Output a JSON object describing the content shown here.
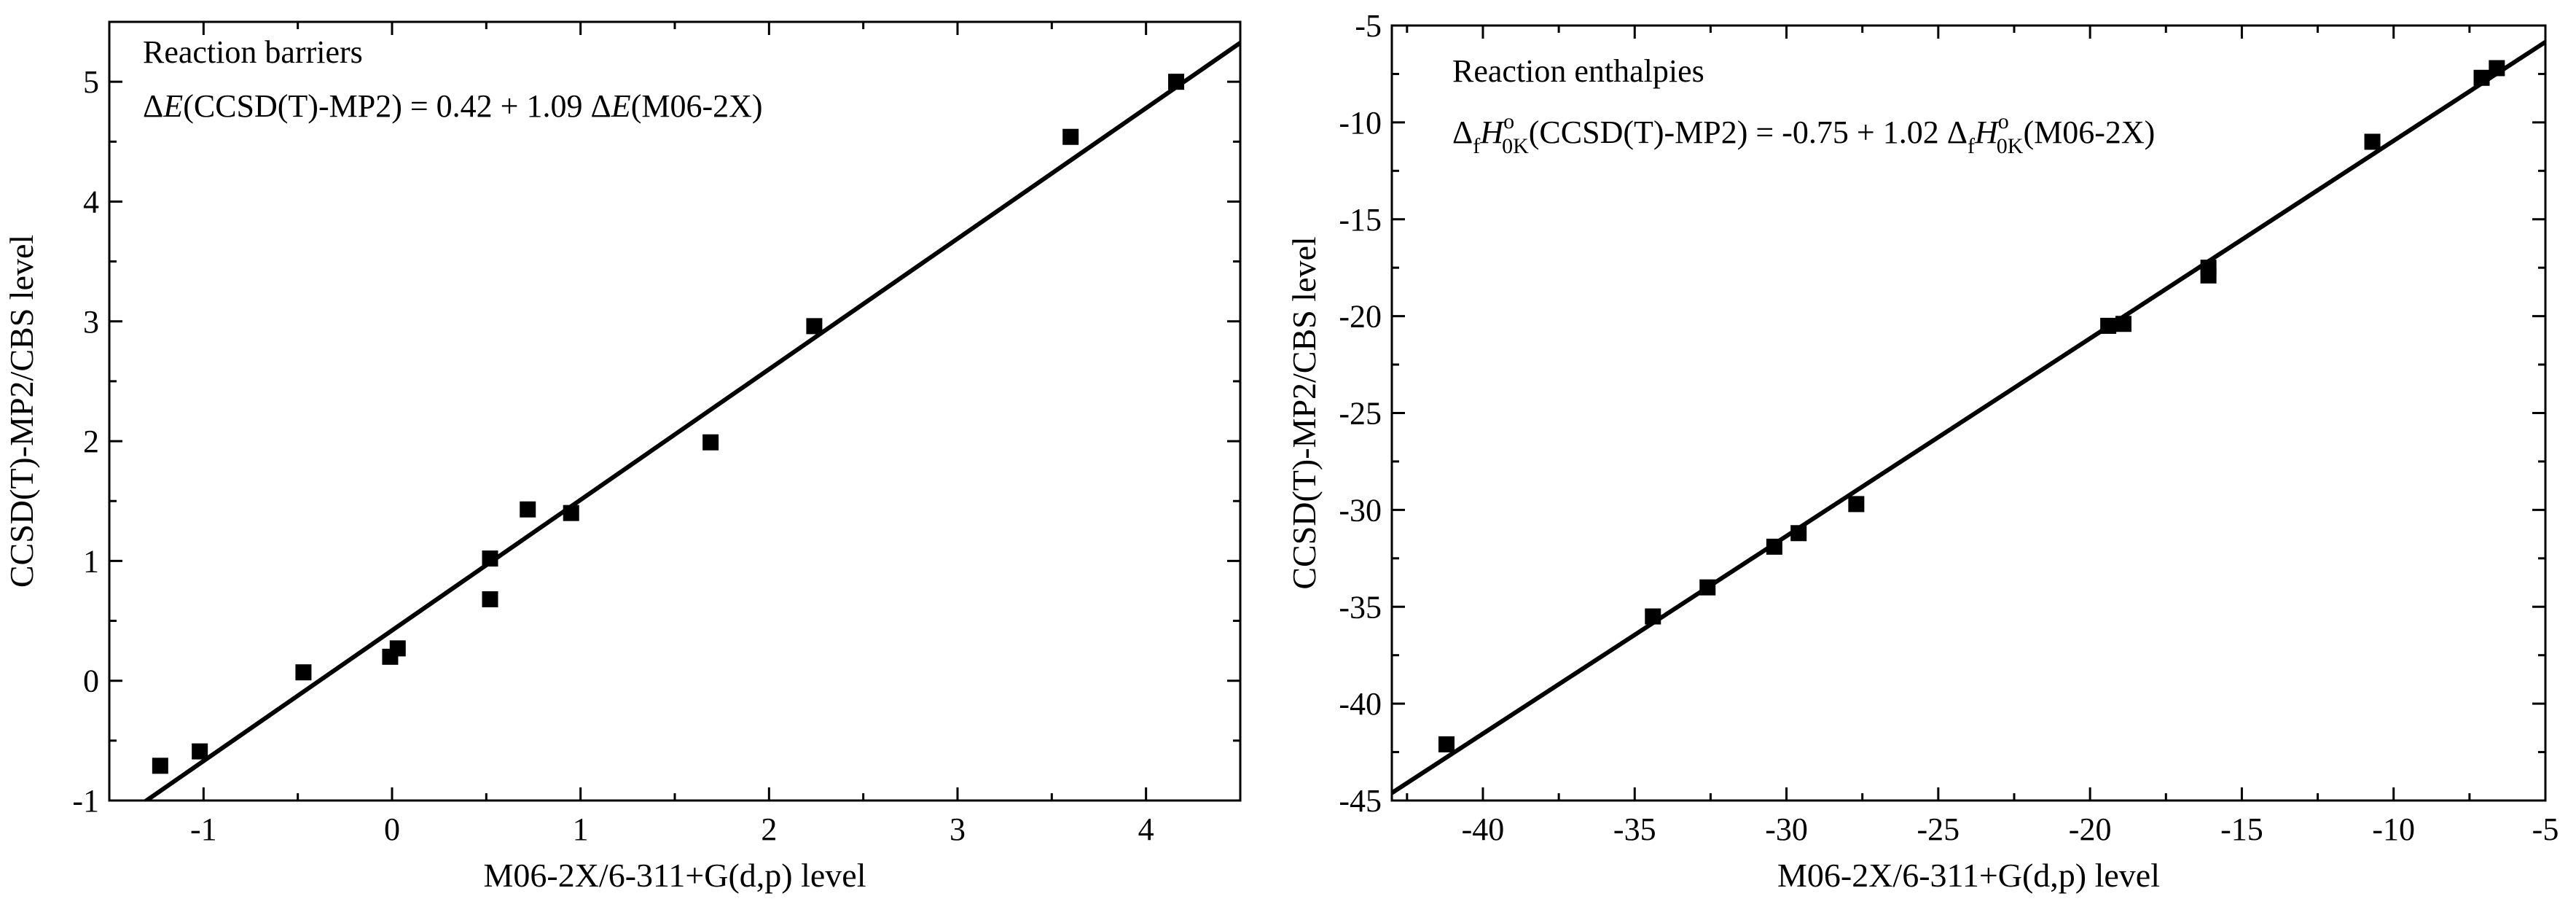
{
  "chart_data": [
    {
      "type": "scatter",
      "title": "Reaction barriers",
      "equation": {
        "full_text": "ΔE(CCSD(T)-MP2) = 0.42 + 1.09 ΔE(M06-2X)",
        "parts": [
          {
            "t": "Δ",
            "style": "normal"
          },
          {
            "t": "E",
            "style": "italic"
          },
          {
            "t": "(CCSD(T)-MP2) = 0.42 + 1.09 Δ",
            "style": "normal"
          },
          {
            "t": "E",
            "style": "italic"
          },
          {
            "t": "(M06-2X)",
            "style": "normal"
          }
        ]
      },
      "xlabel": "M06-2X/6-311+G(d,p) level",
      "ylabel": "CCSD(T)-MP2/CBS level",
      "xlim": [
        -1.5,
        4.5
      ],
      "ylim": [
        -1,
        5.5
      ],
      "xticks": [
        -1,
        0,
        1,
        2,
        3,
        4
      ],
      "xtick_labels": [
        "-1",
        "0",
        "1",
        "2",
        "3",
        "4"
      ],
      "yticks": [
        -1,
        0,
        1,
        2,
        3,
        4,
        5
      ],
      "ytick_labels": [
        "-1",
        "0",
        "1",
        "2",
        "3",
        "4",
        "5"
      ],
      "fit": {
        "intercept": 0.42,
        "slope": 1.09
      },
      "points": [
        {
          "x": -1.23,
          "y": -0.71
        },
        {
          "x": -1.02,
          "y": -0.59
        },
        {
          "x": -0.47,
          "y": 0.07
        },
        {
          "x": -0.01,
          "y": 0.2
        },
        {
          "x": 0.03,
          "y": 0.27
        },
        {
          "x": 0.52,
          "y": 1.02
        },
        {
          "x": 0.52,
          "y": 0.68
        },
        {
          "x": 0.72,
          "y": 1.43
        },
        {
          "x": 0.95,
          "y": 1.4
        },
        {
          "x": 1.69,
          "y": 1.99
        },
        {
          "x": 2.24,
          "y": 2.96
        },
        {
          "x": 3.6,
          "y": 4.54
        },
        {
          "x": 4.16,
          "y": 5.0
        }
      ]
    },
    {
      "type": "scatter",
      "title": "Reaction enthalpies",
      "equation": {
        "full_text": "ΔfHo0K(CCSD(T)-MP2) = -0.75 + 1.02 ΔfHo0K(M06-2X)",
        "parts": [
          {
            "t": "Δ",
            "style": "normal"
          },
          {
            "t": "f",
            "style": "sub"
          },
          {
            "t": "H",
            "style": "italic"
          },
          {
            "t": "o",
            "style": "sup"
          },
          {
            "t": "0K",
            "style": "sub"
          },
          {
            "t": "(CCSD(T)-MP2) = -0.75 + 1.02 Δ",
            "style": "normal"
          },
          {
            "t": "f",
            "style": "sub"
          },
          {
            "t": "H",
            "style": "italic"
          },
          {
            "t": "o",
            "style": "sup"
          },
          {
            "t": "0K",
            "style": "sub"
          },
          {
            "t": "(M06-2X)",
            "style": "normal"
          }
        ]
      },
      "xlabel": "M06-2X/6-311+G(d,p) level",
      "ylabel": "CCSD(T)-MP2/CBS level",
      "xlim": [
        -43,
        -5
      ],
      "ylim": [
        -45,
        -5
      ],
      "xticks": [
        -40,
        -35,
        -30,
        -25,
        -20,
        -15,
        -10,
        -5
      ],
      "xtick_labels": [
        "-40",
        "-35",
        "-30",
        "-25",
        "-20",
        "-15",
        "-10",
        "-5"
      ],
      "yticks": [
        -45,
        -40,
        -35,
        -30,
        -25,
        -20,
        -15,
        -10,
        -5
      ],
      "ytick_labels": [
        "-45",
        "-40",
        "-35",
        "-30",
        "-25",
        "-20",
        "-15",
        "-10",
        "-5"
      ],
      "fit": {
        "intercept": -0.75,
        "slope": 1.02
      },
      "points": [
        {
          "x": -41.2,
          "y": -42.1
        },
        {
          "x": -34.4,
          "y": -35.5
        },
        {
          "x": -32.6,
          "y": -34.0
        },
        {
          "x": -30.4,
          "y": -31.9
        },
        {
          "x": -29.6,
          "y": -31.2
        },
        {
          "x": -27.7,
          "y": -29.7
        },
        {
          "x": -19.4,
          "y": -20.5
        },
        {
          "x": -18.9,
          "y": -20.4
        },
        {
          "x": -16.1,
          "y": -17.5
        },
        {
          "x": -16.1,
          "y": -17.9
        },
        {
          "x": -10.7,
          "y": -11.0
        },
        {
          "x": -7.1,
          "y": -7.7
        },
        {
          "x": -6.6,
          "y": -7.2
        }
      ]
    }
  ]
}
